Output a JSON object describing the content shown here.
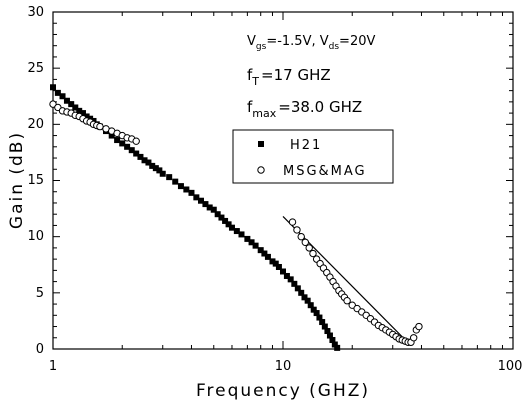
{
  "chart_data": {
    "type": "scatter",
    "xscale": "log",
    "xlim": [
      1,
      100
    ],
    "ylim": [
      0,
      30
    ],
    "xlabel": "Frequency (GHZ)",
    "ylabel": "Gain (dB)",
    "xticks": [
      "1",
      "10",
      "100"
    ],
    "yticks": [
      "0",
      "5",
      "10",
      "15",
      "20",
      "25",
      "30"
    ],
    "annotations": {
      "bias": {
        "v1": "V",
        "v1_sub": "gs",
        "v1_val": "=-1.5V, ",
        "v2": "V",
        "v2_sub": "ds",
        "v2_val": "=20V"
      },
      "ft": {
        "main": "f",
        "sub": "T",
        "val": "=17 GHZ"
      },
      "fmax": {
        "main": "f",
        "sub": "max",
        "val": "=38.0 GHZ"
      }
    },
    "legend": {
      "position": "top-right",
      "entries": [
        "H21",
        "MSG&MAG"
      ]
    },
    "series": [
      {
        "name": "H21",
        "marker": "filled-square",
        "color": "#000000",
        "points": [
          [
            1.0,
            23.3
          ],
          [
            1.05,
            22.8
          ],
          [
            1.1,
            22.5
          ],
          [
            1.15,
            22.1
          ],
          [
            1.2,
            21.8
          ],
          [
            1.25,
            21.5
          ],
          [
            1.3,
            21.2
          ],
          [
            1.35,
            21.0
          ],
          [
            1.4,
            20.7
          ],
          [
            1.45,
            20.5
          ],
          [
            1.5,
            20.3
          ],
          [
            1.55,
            20.0
          ],
          [
            1.6,
            19.8
          ],
          [
            1.7,
            19.4
          ],
          [
            1.8,
            19.0
          ],
          [
            1.9,
            18.6
          ],
          [
            2.0,
            18.3
          ],
          [
            2.1,
            18.0
          ],
          [
            2.2,
            17.7
          ],
          [
            2.3,
            17.4
          ],
          [
            2.4,
            17.1
          ],
          [
            2.5,
            16.8
          ],
          [
            2.6,
            16.6
          ],
          [
            2.7,
            16.3
          ],
          [
            2.8,
            16.1
          ],
          [
            2.9,
            15.9
          ],
          [
            3.0,
            15.6
          ],
          [
            3.2,
            15.3
          ],
          [
            3.4,
            14.9
          ],
          [
            3.6,
            14.5
          ],
          [
            3.8,
            14.2
          ],
          [
            4.0,
            13.9
          ],
          [
            4.2,
            13.5
          ],
          [
            4.4,
            13.2
          ],
          [
            4.6,
            12.9
          ],
          [
            4.8,
            12.6
          ],
          [
            5.0,
            12.4
          ],
          [
            5.2,
            12.0
          ],
          [
            5.4,
            11.7
          ],
          [
            5.6,
            11.4
          ],
          [
            5.8,
            11.1
          ],
          [
            6.0,
            10.8
          ],
          [
            6.3,
            10.5
          ],
          [
            6.6,
            10.2
          ],
          [
            7.0,
            9.8
          ],
          [
            7.3,
            9.5
          ],
          [
            7.6,
            9.2
          ],
          [
            8.0,
            8.8
          ],
          [
            8.3,
            8.5
          ],
          [
            8.6,
            8.2
          ],
          [
            9.0,
            7.8
          ],
          [
            9.3,
            7.6
          ],
          [
            9.6,
            7.3
          ],
          [
            10.0,
            6.9
          ],
          [
            10.4,
            6.5
          ],
          [
            10.8,
            6.2
          ],
          [
            11.2,
            5.8
          ],
          [
            11.6,
            5.4
          ],
          [
            12.0,
            5.0
          ],
          [
            12.4,
            4.6
          ],
          [
            12.8,
            4.3
          ],
          [
            13.2,
            3.9
          ],
          [
            13.6,
            3.5
          ],
          [
            14.0,
            3.2
          ],
          [
            14.4,
            2.8
          ],
          [
            14.8,
            2.4
          ],
          [
            15.2,
            2.0
          ],
          [
            15.6,
            1.6
          ],
          [
            16.0,
            1.2
          ],
          [
            16.4,
            0.8
          ],
          [
            16.8,
            0.4
          ],
          [
            17.2,
            0.1
          ]
        ]
      },
      {
        "name": "MSG&MAG",
        "marker": "open-circle",
        "color": "#000000",
        "points": [
          [
            1.0,
            21.8
          ],
          [
            1.05,
            21.5
          ],
          [
            1.1,
            21.2
          ],
          [
            1.15,
            21.1
          ],
          [
            1.2,
            21.0
          ],
          [
            1.25,
            20.8
          ],
          [
            1.3,
            20.7
          ],
          [
            1.35,
            20.5
          ],
          [
            1.4,
            20.3
          ],
          [
            1.45,
            20.2
          ],
          [
            1.5,
            20.0
          ],
          [
            1.55,
            19.9
          ],
          [
            1.6,
            19.8
          ],
          [
            1.7,
            19.6
          ],
          [
            1.8,
            19.4
          ],
          [
            1.9,
            19.2
          ],
          [
            2.0,
            19.0
          ],
          [
            2.1,
            18.8
          ],
          [
            2.2,
            18.7
          ],
          [
            2.3,
            18.5
          ],
          [
            11.0,
            11.3
          ],
          [
            11.5,
            10.6
          ],
          [
            12.0,
            10.0
          ],
          [
            12.5,
            9.5
          ],
          [
            13.0,
            9.0
          ],
          [
            13.5,
            8.5
          ],
          [
            14.0,
            8.0
          ],
          [
            14.5,
            7.6
          ],
          [
            15.0,
            7.2
          ],
          [
            15.5,
            6.8
          ],
          [
            16.0,
            6.4
          ],
          [
            16.5,
            6.0
          ],
          [
            17.0,
            5.6
          ],
          [
            17.5,
            5.2
          ],
          [
            18.0,
            4.9
          ],
          [
            18.5,
            4.6
          ],
          [
            19.0,
            4.3
          ],
          [
            20.0,
            3.9
          ],
          [
            21.0,
            3.6
          ],
          [
            22.0,
            3.3
          ],
          [
            23.0,
            3.0
          ],
          [
            24.0,
            2.7
          ],
          [
            25.0,
            2.4
          ],
          [
            26.0,
            2.1
          ],
          [
            27.0,
            1.9
          ],
          [
            28.0,
            1.7
          ],
          [
            29.0,
            1.5
          ],
          [
            30.0,
            1.3
          ],
          [
            31.0,
            1.1
          ],
          [
            32.0,
            0.9
          ],
          [
            33.0,
            0.8
          ],
          [
            34.0,
            0.7
          ],
          [
            35.0,
            0.6
          ],
          [
            36.0,
            0.6
          ],
          [
            37.0,
            1.0
          ],
          [
            38.0,
            1.7
          ],
          [
            39.0,
            2.0
          ]
        ]
      }
    ],
    "fit_line": {
      "points": [
        [
          10.0,
          11.8
        ],
        [
          36.0,
          0.3
        ]
      ]
    }
  }
}
